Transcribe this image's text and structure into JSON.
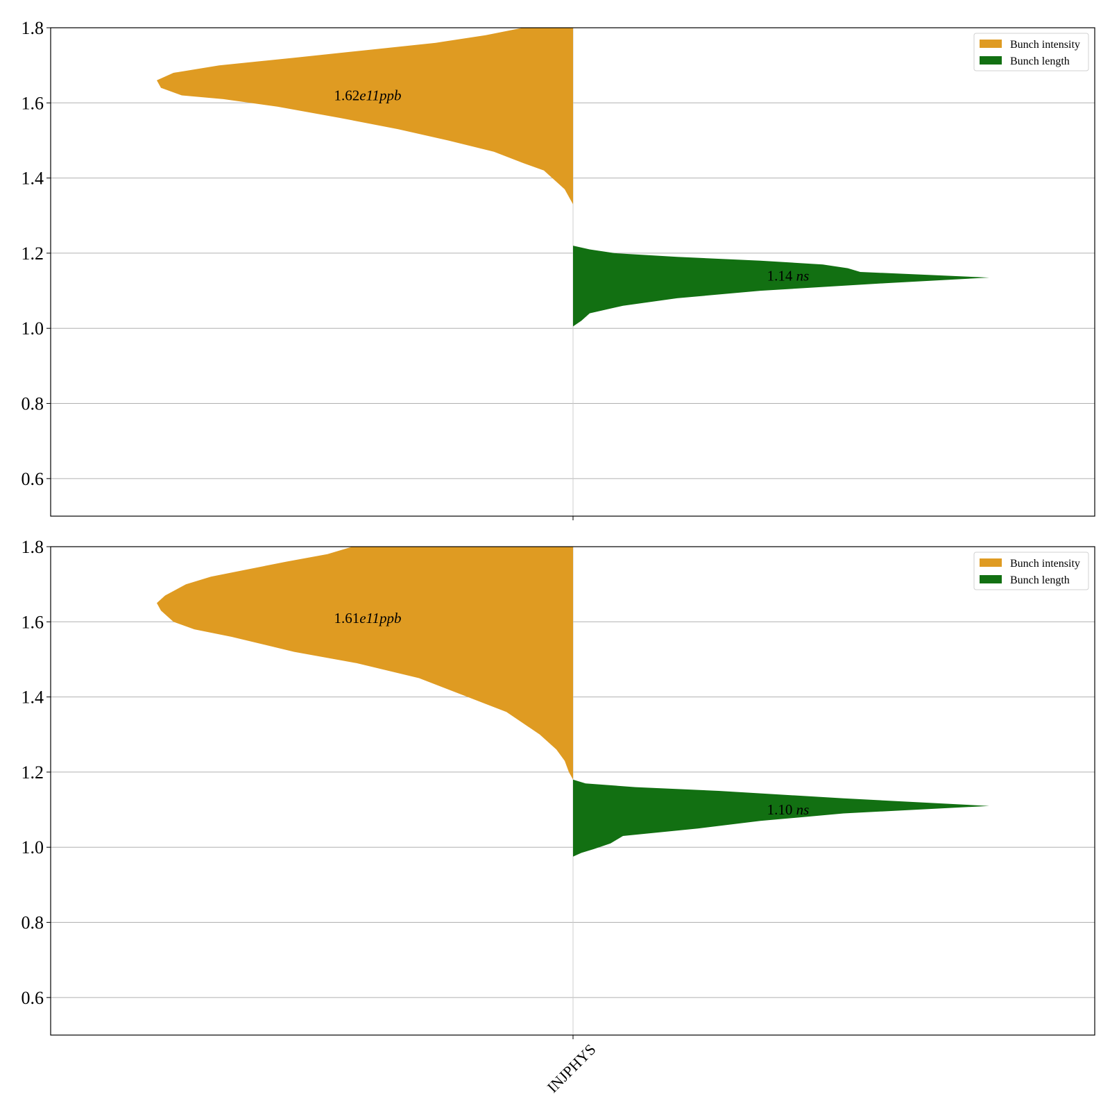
{
  "colors": {
    "intensity": "#df9b22",
    "length": "#127012",
    "grid": "#b0b0b0",
    "axis": "#000000"
  },
  "chart_data": [
    {
      "type": "violin",
      "category": "INJPHYS",
      "ylim": [
        0.5,
        1.8
      ],
      "yticks": [
        "0.6",
        "0.8",
        "1.0",
        "1.2",
        "1.4",
        "1.6",
        "1.8"
      ],
      "grid": true,
      "legend_position": "top-right",
      "legend": [
        "Bunch intensity",
        "Bunch length"
      ],
      "series": [
        {
          "name": "Bunch intensity",
          "side": "left",
          "annotation": {
            "number": "1.62",
            "exp": "e11",
            "unit": "ppb"
          },
          "annotation_y": 1.62,
          "profile": [
            [
              1.33,
              0.0
            ],
            [
              1.35,
              0.01
            ],
            [
              1.37,
              0.02
            ],
            [
              1.39,
              0.04
            ],
            [
              1.42,
              0.07
            ],
            [
              1.44,
              0.12
            ],
            [
              1.47,
              0.19
            ],
            [
              1.5,
              0.3
            ],
            [
              1.53,
              0.42
            ],
            [
              1.56,
              0.56
            ],
            [
              1.59,
              0.71
            ],
            [
              1.61,
              0.84
            ],
            [
              1.62,
              0.94
            ],
            [
              1.64,
              0.99
            ],
            [
              1.66,
              1.0
            ],
            [
              1.68,
              0.96
            ],
            [
              1.7,
              0.85
            ],
            [
              1.72,
              0.67
            ],
            [
              1.74,
              0.5
            ],
            [
              1.76,
              0.33
            ],
            [
              1.78,
              0.21
            ],
            [
              1.8,
              0.12
            ]
          ]
        },
        {
          "name": "Bunch length",
          "side": "right",
          "annotation": {
            "number": "1.14",
            "unit": "ns"
          },
          "annotation_y": 1.14,
          "profile": [
            [
              1.005,
              0.0
            ],
            [
              1.02,
              0.02
            ],
            [
              1.04,
              0.04
            ],
            [
              1.06,
              0.12
            ],
            [
              1.08,
              0.25
            ],
            [
              1.1,
              0.45
            ],
            [
              1.12,
              0.75
            ],
            [
              1.135,
              1.0
            ],
            [
              1.15,
              0.69
            ],
            [
              1.16,
              0.66
            ],
            [
              1.17,
              0.6
            ],
            [
              1.18,
              0.45
            ],
            [
              1.19,
              0.25
            ],
            [
              1.2,
              0.1
            ],
            [
              1.21,
              0.04
            ],
            [
              1.22,
              0.0
            ]
          ]
        }
      ]
    },
    {
      "type": "violin",
      "category": "INJPHYS",
      "ylim": [
        0.5,
        1.8
      ],
      "yticks": [
        "0.6",
        "0.8",
        "1.0",
        "1.2",
        "1.4",
        "1.6",
        "1.8"
      ],
      "grid": true,
      "legend_position": "top-right",
      "legend": [
        "Bunch intensity",
        "Bunch length"
      ],
      "xtick": "INJPHYS",
      "series": [
        {
          "name": "Bunch intensity",
          "side": "left",
          "annotation": {
            "number": "1.61",
            "exp": "e11",
            "unit": "ppb"
          },
          "annotation_y": 1.61,
          "profile": [
            [
              1.18,
              0.0
            ],
            [
              1.2,
              0.01
            ],
            [
              1.23,
              0.02
            ],
            [
              1.26,
              0.04
            ],
            [
              1.3,
              0.08
            ],
            [
              1.33,
              0.12
            ],
            [
              1.36,
              0.16
            ],
            [
              1.39,
              0.23
            ],
            [
              1.42,
              0.3
            ],
            [
              1.45,
              0.37
            ],
            [
              1.49,
              0.52
            ],
            [
              1.52,
              0.67
            ],
            [
              1.56,
              0.82
            ],
            [
              1.58,
              0.91
            ],
            [
              1.6,
              0.96
            ],
            [
              1.63,
              0.99
            ],
            [
              1.65,
              1.0
            ],
            [
              1.67,
              0.98
            ],
            [
              1.7,
              0.93
            ],
            [
              1.72,
              0.87
            ],
            [
              1.74,
              0.78
            ],
            [
              1.76,
              0.69
            ],
            [
              1.78,
              0.59
            ],
            [
              1.8,
              0.53
            ]
          ]
        },
        {
          "name": "Bunch length",
          "side": "right",
          "annotation": {
            "number": "1.10",
            "unit": "ns"
          },
          "annotation_y": 1.1,
          "profile": [
            [
              0.975,
              0.0
            ],
            [
              0.985,
              0.02
            ],
            [
              0.995,
              0.05
            ],
            [
              1.01,
              0.09
            ],
            [
              1.03,
              0.12
            ],
            [
              1.05,
              0.3
            ],
            [
              1.07,
              0.45
            ],
            [
              1.09,
              0.65
            ],
            [
              1.11,
              1.0
            ],
            [
              1.13,
              0.65
            ],
            [
              1.15,
              0.35
            ],
            [
              1.16,
              0.15
            ],
            [
              1.17,
              0.03
            ],
            [
              1.18,
              0.0
            ]
          ]
        }
      ]
    }
  ]
}
